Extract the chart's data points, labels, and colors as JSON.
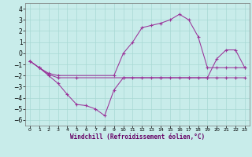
{
  "bg_color": "#c8ecea",
  "grid_color": "#a8d8d4",
  "line_color": "#993399",
  "xlabel": "Windchill (Refroidissement éolien,°C)",
  "xlim": [
    -0.5,
    23.5
  ],
  "ylim": [
    -6.5,
    4.5
  ],
  "xticks": [
    0,
    1,
    2,
    3,
    4,
    5,
    6,
    7,
    8,
    9,
    10,
    11,
    12,
    13,
    14,
    15,
    16,
    17,
    18,
    19,
    20,
    21,
    22,
    23
  ],
  "yticks": [
    -6,
    -5,
    -4,
    -3,
    -2,
    -1,
    0,
    1,
    2,
    3,
    4
  ],
  "line1_x": [
    0,
    1,
    2,
    3,
    4,
    5,
    6,
    7,
    8,
    9,
    10,
    11,
    12,
    13,
    14,
    15,
    16,
    17,
    18,
    19,
    20,
    21,
    22,
    23
  ],
  "line1_y": [
    -0.7,
    -1.3,
    -2.0,
    -2.7,
    -3.7,
    -4.6,
    -4.7,
    -5.0,
    -5.6,
    -3.3,
    -2.2,
    -2.2,
    -2.2,
    -2.2,
    -2.2,
    -2.2,
    -2.2,
    -2.2,
    -2.2,
    -2.2,
    -2.2,
    -2.2,
    -2.2,
    -2.2
  ],
  "line2_x": [
    0,
    1,
    2,
    3,
    5,
    10,
    14,
    17,
    19,
    20,
    21,
    22,
    23
  ],
  "line2_y": [
    -0.7,
    -1.3,
    -1.9,
    -2.2,
    -2.2,
    -2.2,
    -2.2,
    -2.2,
    -2.2,
    -0.5,
    0.3,
    0.3,
    -1.3
  ],
  "line3_x": [
    0,
    1,
    2,
    3,
    9,
    10,
    11,
    12,
    13,
    14,
    15,
    16,
    17,
    18,
    19,
    20,
    21,
    22,
    23
  ],
  "line3_y": [
    -0.7,
    -1.3,
    -1.8,
    -2.0,
    -2.0,
    -0.0,
    1.0,
    2.3,
    2.5,
    2.7,
    3.0,
    3.5,
    3.0,
    1.5,
    -1.3,
    -1.3,
    -1.3,
    -1.3,
    -1.3
  ],
  "marker": "+"
}
